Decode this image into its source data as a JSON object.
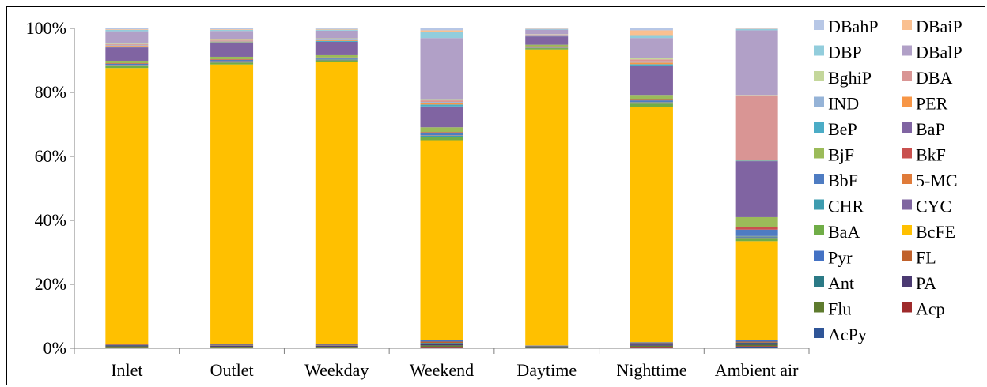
{
  "chart_data": {
    "type": "bar",
    "stacked": true,
    "percent_stacked": true,
    "title": "",
    "xlabel": "",
    "ylabel": "",
    "ylim": [
      0,
      100
    ],
    "y_ticks": [
      "0%",
      "20%",
      "40%",
      "60%",
      "80%",
      "100%"
    ],
    "y_tick_values": [
      0,
      20,
      40,
      60,
      80,
      100
    ],
    "grid": false,
    "legend_position": "right",
    "categories": [
      "Inlet",
      "Outlet",
      "Weekday",
      "Weekend",
      "Daytime",
      "Nighttime",
      "Ambient air"
    ],
    "series": [
      {
        "name": "AcPy",
        "color": "#2F5597",
        "values": [
          0.2,
          0.2,
          0.2,
          0.3,
          0.1,
          0.3,
          0.5
        ]
      },
      {
        "name": "Acp",
        "color": "#9E2A2B",
        "values": [
          0.1,
          0.1,
          0.1,
          0.2,
          0.1,
          0.2,
          0.2
        ]
      },
      {
        "name": "Flu",
        "color": "#5E7B2E",
        "values": [
          0.3,
          0.2,
          0.2,
          0.4,
          0.2,
          0.3,
          0.4
        ]
      },
      {
        "name": "PA",
        "color": "#4B3A72",
        "values": [
          0.3,
          0.3,
          0.3,
          0.6,
          0.2,
          0.4,
          0.5
        ]
      },
      {
        "name": "Ant",
        "color": "#2B7A86",
        "values": [
          0.1,
          0.1,
          0.1,
          0.2,
          0.1,
          0.1,
          0.2
        ]
      },
      {
        "name": "FL",
        "color": "#C0612B",
        "values": [
          0.2,
          0.2,
          0.2,
          0.4,
          0.1,
          0.3,
          0.3
        ]
      },
      {
        "name": "Pyr",
        "color": "#4472C4",
        "values": [
          0.2,
          0.2,
          0.2,
          0.4,
          0.1,
          0.3,
          0.4
        ]
      },
      {
        "name": "BcFE",
        "color": "#FFC000",
        "values": [
          86.9,
          87.6,
          88.4,
          62.3,
          92.6,
          73.6,
          31.0
        ]
      },
      {
        "name": "BaA",
        "color": "#70AD47",
        "values": [
          0.6,
          0.6,
          0.5,
          1.0,
          0.4,
          1.0,
          1.0
        ]
      },
      {
        "name": "CYC",
        "color": "#7F65A0",
        "values": [
          0.1,
          0.1,
          0.1,
          0.1,
          0.1,
          0.1,
          0.2
        ]
      },
      {
        "name": "CHR",
        "color": "#3E9CAF",
        "values": [
          0.2,
          0.2,
          0.2,
          0.3,
          0.1,
          0.3,
          0.3
        ]
      },
      {
        "name": "5-MC",
        "color": "#E07B39",
        "values": [
          0.1,
          0.1,
          0.1,
          0.1,
          0.1,
          0.1,
          0.1
        ]
      },
      {
        "name": "BbF",
        "color": "#4E7CC2",
        "values": [
          0.3,
          0.4,
          0.3,
          0.6,
          0.2,
          0.5,
          2.0
        ]
      },
      {
        "name": "BkF",
        "color": "#C9504E",
        "values": [
          0.2,
          0.2,
          0.2,
          0.4,
          0.1,
          0.4,
          0.8
        ]
      },
      {
        "name": "BjF",
        "color": "#9BBB59",
        "values": [
          0.8,
          0.8,
          0.7,
          1.5,
          0.5,
          1.3,
          3.1
        ]
      },
      {
        "name": "BaP",
        "color": "#8064A2",
        "values": [
          4.2,
          4.3,
          4.2,
          6.5,
          2.6,
          9.0,
          17.5
        ]
      },
      {
        "name": "BeP",
        "color": "#4BACC6",
        "values": [
          0.3,
          0.3,
          0.3,
          0.6,
          0.2,
          0.6,
          0.2
        ]
      },
      {
        "name": "PER",
        "color": "#F79646",
        "values": [
          0.2,
          0.2,
          0.2,
          0.4,
          0.1,
          0.5,
          0.1
        ]
      },
      {
        "name": "IND",
        "color": "#95B3D7",
        "values": [
          0.2,
          0.2,
          0.2,
          0.4,
          0.1,
          0.4,
          0.1
        ]
      },
      {
        "name": "DBA",
        "color": "#D99594",
        "values": [
          0.3,
          0.3,
          0.2,
          0.5,
          0.2,
          0.6,
          20.2
        ]
      },
      {
        "name": "BghiP",
        "color": "#C4D79B",
        "values": [
          0.2,
          0.2,
          0.2,
          0.4,
          0.1,
          0.4,
          0.1
        ]
      },
      {
        "name": "DBalP",
        "color": "#B1A0C7",
        "values": [
          3.9,
          2.6,
          2.4,
          19.0,
          1.4,
          6.3,
          20.2
        ]
      },
      {
        "name": "DBP",
        "color": "#92CDDC",
        "values": [
          0.4,
          0.3,
          0.3,
          1.8,
          0.2,
          0.9,
          0.4
        ]
      },
      {
        "name": "DBaiP",
        "color": "#FAC090",
        "values": [
          0.2,
          0.2,
          0.2,
          0.6,
          0.1,
          1.5,
          0.1
        ]
      },
      {
        "name": "DBahP",
        "color": "#B7C7E6",
        "values": [
          0.3,
          0.3,
          0.2,
          0.6,
          0.1,
          0.6,
          0.1
        ]
      }
    ],
    "legend": {
      "rows": [
        [
          "DBahP",
          "DBaiP"
        ],
        [
          "DBP",
          "DBalP"
        ],
        [
          "BghiP",
          "DBA"
        ],
        [
          "IND",
          "PER"
        ],
        [
          "BeP",
          "BaP"
        ],
        [
          "BjF",
          "BkF"
        ],
        [
          "BbF",
          "5-MC"
        ],
        [
          "CHR",
          "CYC"
        ],
        [
          "BaA",
          "BcFE"
        ],
        [
          "Pyr",
          "FL"
        ],
        [
          "Ant",
          "PA"
        ],
        [
          "Flu",
          "Acp"
        ],
        [
          "AcPy"
        ]
      ]
    }
  }
}
